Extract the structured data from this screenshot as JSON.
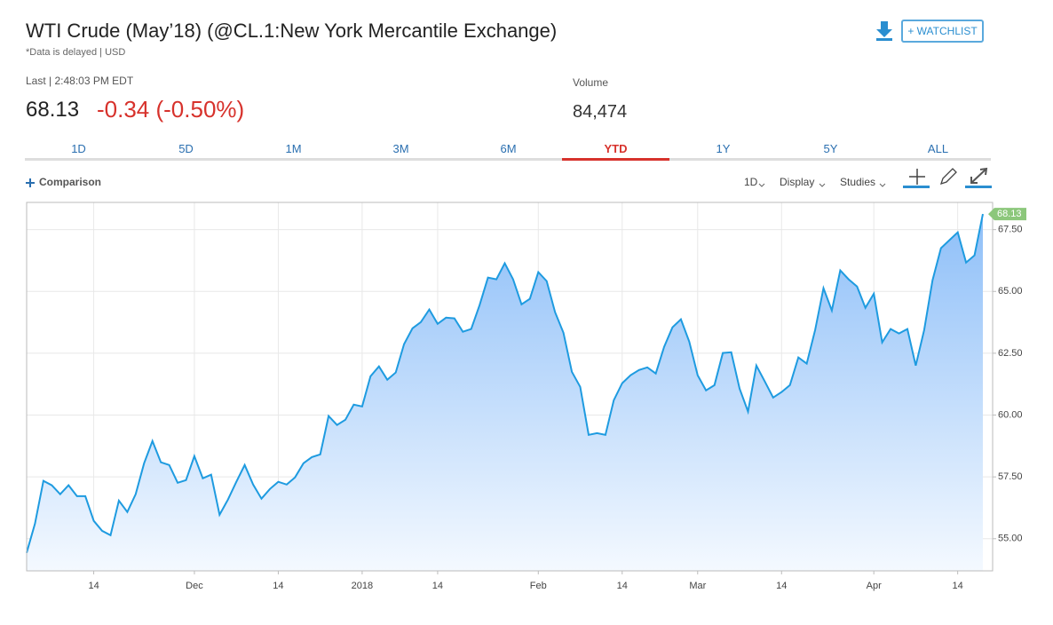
{
  "header": {
    "title": "WTI Crude (May’18) (@CL.1:New York Mercantile Exchange)",
    "subtitle": "*Data is delayed | USD",
    "last_label": "Last | 2:48:03 PM EDT",
    "last_price": "68.13",
    "change": "-0.34 (-0.50%)",
    "volume_label": "Volume",
    "volume": "84,474",
    "watchlist": "+ WATCHLIST"
  },
  "tabs": {
    "items": [
      "1D",
      "5D",
      "1M",
      "3M",
      "6M",
      "YTD",
      "1Y",
      "5Y",
      "ALL"
    ],
    "active": 5
  },
  "toolbar": {
    "comparison": "Comparison",
    "interval": "1D",
    "display": "Display",
    "studies": "Studies"
  },
  "chart_data": {
    "type": "area",
    "categories": [
      null,
      null,
      null,
      null,
      null,
      null,
      null,
      null,
      "14",
      null,
      null,
      null,
      null,
      null,
      null,
      null,
      null,
      null,
      null,
      null,
      "Dec",
      null,
      null,
      null,
      null,
      null,
      null,
      null,
      null,
      null,
      "14",
      null,
      null,
      null,
      null,
      null,
      null,
      null,
      null,
      null,
      "2018",
      null,
      null,
      null,
      null,
      null,
      null,
      null,
      null,
      "14",
      null,
      null,
      null,
      null,
      null,
      null,
      null,
      null,
      null,
      null,
      null,
      "Feb",
      null,
      null,
      null,
      null,
      null,
      null,
      null,
      null,
      null,
      "14",
      null,
      null,
      null,
      null,
      null,
      null,
      null,
      null,
      "Mar",
      null,
      null,
      null,
      null,
      null,
      null,
      null,
      null,
      null,
      "14",
      null,
      null,
      null,
      null,
      null,
      null,
      null,
      null,
      null,
      null,
      "Apr",
      null,
      null,
      null,
      null,
      null,
      null,
      null,
      null,
      null,
      "14",
      null,
      null,
      null
    ],
    "series": [
      {
        "color": "#1e9be0",
        "values": [
          54.43,
          55.61,
          57.34,
          57.16,
          56.8,
          57.16,
          56.72,
          56.72,
          55.72,
          55.32,
          55.14,
          56.54,
          56.08,
          56.8,
          58.05,
          58.95,
          58.09,
          57.98,
          57.26,
          57.37,
          58.34,
          57.44,
          57.59,
          55.97,
          56.58,
          57.3,
          57.98,
          57.19,
          56.62,
          57.01,
          57.3,
          57.19,
          57.48,
          58.05,
          58.3,
          58.41,
          59.96,
          59.6,
          59.81,
          60.42,
          60.35,
          61.57,
          61.97,
          61.43,
          61.72,
          62.87,
          63.51,
          63.76,
          64.27,
          63.69,
          63.94,
          63.91,
          63.37,
          63.48,
          64.45,
          65.56,
          65.49,
          66.14,
          65.49,
          64.48,
          64.7,
          65.78,
          65.42,
          64.16,
          63.33,
          61.75,
          61.14,
          59.2,
          59.27,
          59.2,
          60.6,
          61.29,
          61.61,
          61.82,
          61.93,
          61.68,
          62.76,
          63.55,
          63.87,
          62.97,
          61.61,
          61.0,
          61.21,
          62.51,
          62.54,
          61.07,
          60.14,
          62.0,
          61.36,
          60.71,
          60.93,
          61.21,
          62.33,
          62.08,
          63.44,
          65.13,
          64.23,
          65.85,
          65.49,
          65.2,
          64.34,
          64.91,
          62.94,
          63.48,
          63.3,
          63.48,
          62.0,
          63.44,
          65.45,
          66.75,
          67.07,
          67.39,
          66.17,
          66.46,
          68.13
        ]
      }
    ],
    "ylim": [
      53.7,
      68.6
    ],
    "yticks": [
      {
        "value": 55,
        "label": "55.00"
      },
      {
        "value": 57.5,
        "label": "57.50"
      },
      {
        "value": 60,
        "label": "60.00"
      },
      {
        "value": 62.5,
        "label": "62.50"
      },
      {
        "value": 65,
        "label": "65.00"
      },
      {
        "value": 67.5,
        "label": "67.50"
      }
    ],
    "grid": true,
    "last_tag_color": "#8cc77b"
  }
}
